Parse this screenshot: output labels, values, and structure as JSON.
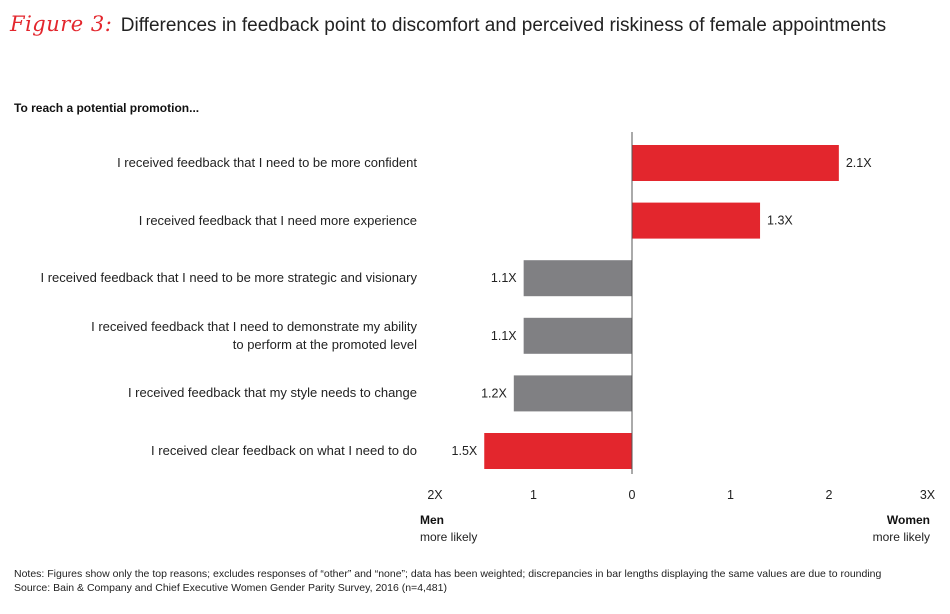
{
  "figure": {
    "label": "Figure 3:",
    "title": "Differences in feedback point to discomfort and perceived riskiness of female appointments"
  },
  "chart_data": {
    "type": "bar",
    "orientation": "horizontal-diverging",
    "subtitle": "To reach a potential promotion...",
    "categories": [
      "I received feedback that I need to be more confident",
      "I received feedback that I need more experience",
      "I received feedback that I need to be more strategic and visionary",
      "I received feedback that I need to demonstrate my ability to perform at the promoted level",
      "I received feedback that my style needs to change",
      "I received clear feedback on what I need to do"
    ],
    "category_lines": [
      [
        "I received feedback that I need to be more confident"
      ],
      [
        "I received feedback that I need more experience"
      ],
      [
        "I received feedback that I need to be more strategic and visionary"
      ],
      [
        "I received feedback that I need to demonstrate my ability",
        "to perform at the promoted level"
      ],
      [
        "I received feedback that my style needs to change"
      ],
      [
        "I received clear feedback on what I need to do"
      ]
    ],
    "values": [
      2.1,
      1.3,
      -1.1,
      -1.1,
      -1.2,
      -1.5
    ],
    "value_labels": [
      "2.1X",
      "1.3X",
      "1.1X",
      "1.1X",
      "1.2X",
      "1.5X"
    ],
    "bar_colors": [
      "#e3262d",
      "#e3262d",
      "#808083",
      "#808083",
      "#808083",
      "#e3262d"
    ],
    "xlim": [
      -2,
      3
    ],
    "ticks": [
      -2,
      -1,
      0,
      1,
      2,
      3
    ],
    "tick_labels": [
      "2X",
      "1",
      "0",
      "1",
      "2",
      "3X"
    ],
    "left_label": {
      "bold": "Men",
      "sub": "more likely"
    },
    "right_label": {
      "bold": "Women",
      "sub": "more likely"
    }
  },
  "notes": "Notes: Figures show only the top reasons; excludes responses of “other” and “none”; data has been weighted; discrepancies in bar lengths displaying the same values are due to rounding",
  "source": "Source: Bain & Company and Chief Executive Women Gender Parity Survey, 2016 (n=4,481)"
}
